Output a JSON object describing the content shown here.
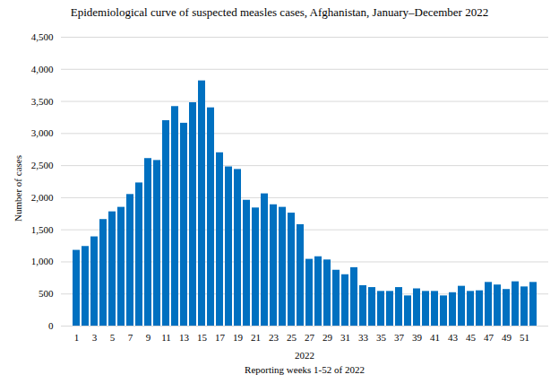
{
  "chart_data": {
    "type": "bar",
    "title": "Epidemiological curve of suspected measles cases, Afghanistan, January–December 2022",
    "ylabel": "Number of cases",
    "x_group_label": "2022",
    "xlabel": "Reporting weeks 1-52 of 2022",
    "categories": [
      "1",
      null,
      "3",
      null,
      "5",
      null,
      "7",
      null,
      "9",
      null,
      "11",
      null,
      "13",
      null,
      "15",
      null,
      "17",
      null,
      "19",
      null,
      "21",
      null,
      "23",
      null,
      "25",
      null,
      "27",
      null,
      "29",
      null,
      "31",
      null,
      "33",
      null,
      "35",
      null,
      "37",
      null,
      "39",
      null,
      "41",
      null,
      "43",
      null,
      "45",
      null,
      "47",
      null,
      "49",
      null,
      "51",
      null
    ],
    "values": [
      1180,
      1240,
      1390,
      1660,
      1780,
      1850,
      2050,
      2230,
      2610,
      2580,
      3200,
      3420,
      3160,
      3480,
      3820,
      3400,
      2700,
      2480,
      2440,
      1960,
      1840,
      2060,
      1890,
      1850,
      1760,
      1580,
      1040,
      1080,
      1030,
      870,
      800,
      910,
      630,
      600,
      540,
      540,
      600,
      470,
      580,
      540,
      540,
      470,
      520,
      620,
      540,
      550,
      680,
      640,
      570,
      690,
      610,
      680
    ],
    "color": "#0070c0",
    "ylim": [
      0,
      4500
    ],
    "yticks": [
      0,
      500,
      1000,
      1500,
      2000,
      2500,
      3000,
      3500,
      4000,
      4500
    ],
    "grid": true
  }
}
